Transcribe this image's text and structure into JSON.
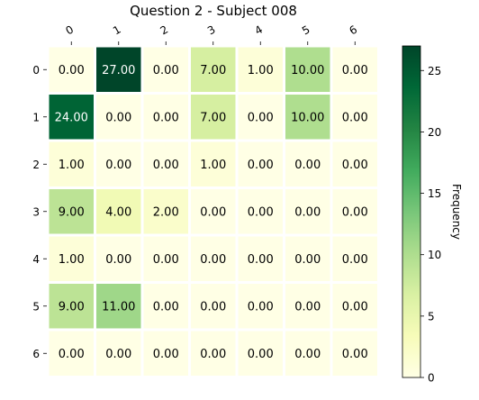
{
  "chart_data": {
    "type": "heatmap",
    "title": "Question 2 - Subject 008",
    "x_categories": [
      "0",
      "1",
      "2",
      "3",
      "4",
      "5",
      "6"
    ],
    "y_categories": [
      "0",
      "1",
      "2",
      "3",
      "4",
      "5",
      "6"
    ],
    "values": [
      [
        0,
        27,
        0,
        7,
        1,
        10,
        0
      ],
      [
        24,
        0,
        0,
        7,
        0,
        10,
        0
      ],
      [
        1,
        0,
        0,
        1,
        0,
        0,
        0
      ],
      [
        9,
        4,
        2,
        0,
        0,
        0,
        0
      ],
      [
        1,
        0,
        0,
        0,
        0,
        0,
        0
      ],
      [
        9,
        11,
        0,
        0,
        0,
        0,
        0
      ],
      [
        0,
        0,
        0,
        0,
        0,
        0,
        0
      ]
    ],
    "value_format_decimals": 2,
    "colorbar": {
      "label": "Frequency",
      "min": 0,
      "max": 27,
      "ticks": [
        0,
        5,
        10,
        15,
        20,
        25
      ]
    },
    "colormap": "YlGn",
    "x_tick_position": "top",
    "x_tick_rotation_deg": -30,
    "grid": false
  }
}
